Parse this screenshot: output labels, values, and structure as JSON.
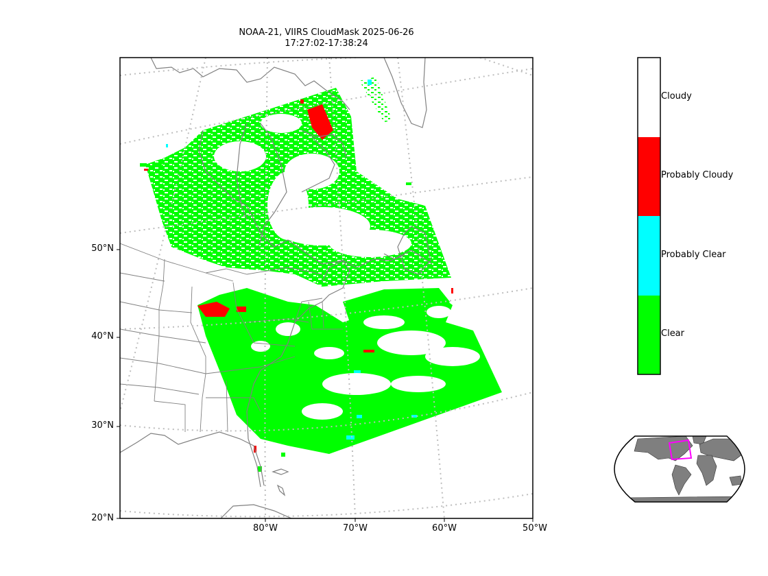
{
  "title": {
    "line1": "NOAA-21, VIIRS CloudMask 2025-06-26",
    "line2": "17:27:02-17:38:24"
  },
  "latitude_labels": [
    "50°N",
    "40°N",
    "30°N",
    "20°N"
  ],
  "longitude_labels": [
    "80°W",
    "70°W",
    "60°W",
    "50°W"
  ],
  "colorbar": {
    "categories": [
      {
        "label": "Cloudy",
        "color": "#ffffff"
      },
      {
        "label": "Probably Cloudy",
        "color": "#ff0000"
      },
      {
        "label": "Probably Clear",
        "color": "#00ffff"
      },
      {
        "label": "Clear",
        "color": "#00ff00"
      }
    ]
  },
  "colors": {
    "clear": "#00ff00",
    "probably_clear": "#00ffff",
    "probably_cloudy": "#ff0000",
    "coastline": "#808080",
    "gridline": "#bdbdbd",
    "inset_land": "#7f7f7f",
    "inset_region": "#ff00ff"
  }
}
